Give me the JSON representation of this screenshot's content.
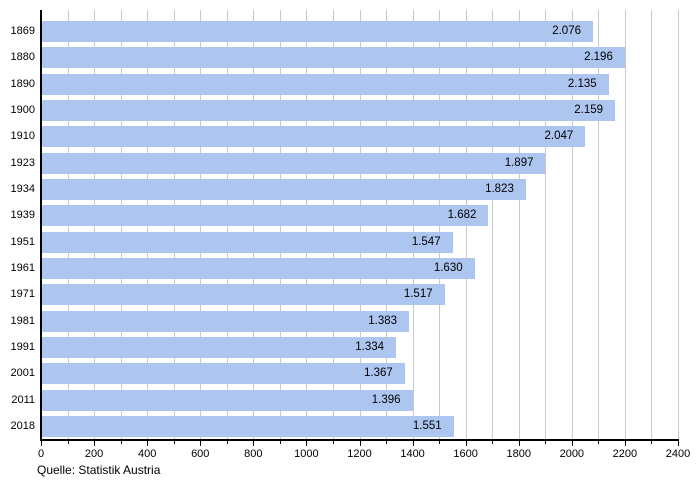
{
  "chart_data": {
    "type": "bar",
    "orientation": "horizontal",
    "title": "",
    "xlabel": "",
    "ylabel": "",
    "categories": [
      "1869",
      "1880",
      "1890",
      "1900",
      "1910",
      "1923",
      "1934",
      "1939",
      "1951",
      "1961",
      "1971",
      "1981",
      "1991",
      "2001",
      "2011",
      "2018"
    ],
    "values": [
      2076,
      2196,
      2135,
      2159,
      2047,
      1897,
      1823,
      1682,
      1547,
      1630,
      1517,
      1383,
      1334,
      1367,
      1396,
      1551
    ],
    "value_labels": [
      "2.076",
      "2.196",
      "2.135",
      "2.159",
      "2.047",
      "1.897",
      "1.823",
      "1.682",
      "1.547",
      "1.630",
      "1.517",
      "1.383",
      "1.334",
      "1.367",
      "1.396",
      "1.551"
    ],
    "xlim": [
      0,
      2400
    ],
    "x_major_tick_labels": [
      "0",
      "200",
      "400",
      "600",
      "800",
      "1000",
      "1200",
      "1400",
      "1600",
      "1800",
      "2000",
      "2200",
      "2400"
    ],
    "x_major_tick_interval": 200,
    "x_minor_tick_interval": 100,
    "grid": "vertical-minor",
    "legend": "none",
    "colors": {
      "bar": "#adc6f0",
      "gridline": "#c9c9c9",
      "axis": "#000000",
      "text": "#000000",
      "background": "#ffffff"
    }
  },
  "footer": {
    "source": "Quelle: Statistik Austria"
  }
}
